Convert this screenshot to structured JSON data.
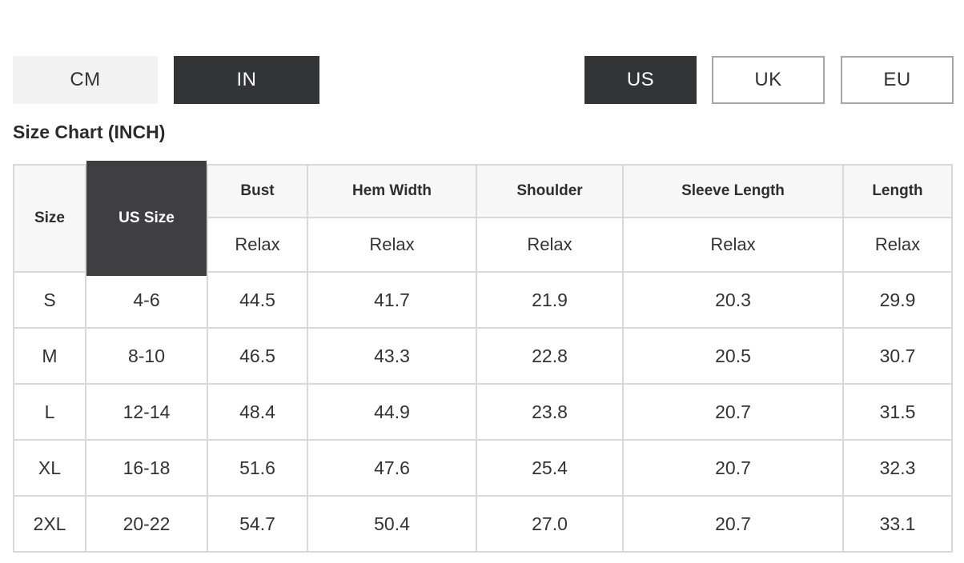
{
  "page": {
    "title": "Size Chart (INCH)"
  },
  "toggles": {
    "units": [
      {
        "id": "cm",
        "label": "CM",
        "selected": false
      },
      {
        "id": "in",
        "label": "IN",
        "selected": true
      }
    ],
    "regions": [
      {
        "id": "us",
        "label": "US",
        "selected": true
      },
      {
        "id": "uk",
        "label": "UK",
        "selected": false
      },
      {
        "id": "eu",
        "label": "EU",
        "selected": false
      }
    ]
  },
  "table": {
    "corner_header": "Size",
    "us_size_header": "US Size",
    "measure_columns": [
      {
        "label": "Bust",
        "fit": "Relax"
      },
      {
        "label": "Hem Width",
        "fit": "Relax"
      },
      {
        "label": "Shoulder",
        "fit": "Relax"
      },
      {
        "label": "Sleeve Length",
        "fit": "Relax"
      },
      {
        "label": "Length",
        "fit": "Relax"
      }
    ],
    "rows": [
      {
        "size": "S",
        "us_size": "4-6",
        "bust": "44.5",
        "hem_width": "41.7",
        "shoulder": "21.9",
        "sleeve_length": "20.3",
        "length": "29.9"
      },
      {
        "size": "M",
        "us_size": "8-10",
        "bust": "46.5",
        "hem_width": "43.3",
        "shoulder": "22.8",
        "sleeve_length": "20.5",
        "length": "30.7"
      },
      {
        "size": "L",
        "us_size": "12-14",
        "bust": "48.4",
        "hem_width": "44.9",
        "shoulder": "23.8",
        "sleeve_length": "20.7",
        "length": "31.5"
      },
      {
        "size": "XL",
        "us_size": "16-18",
        "bust": "51.6",
        "hem_width": "47.6",
        "shoulder": "25.4",
        "sleeve_length": "20.7",
        "length": "32.3"
      },
      {
        "size": "2XL",
        "us_size": "20-22",
        "bust": "54.7",
        "hem_width": "50.4",
        "shoulder": "27.0",
        "sleeve_length": "20.7",
        "length": "33.1"
      }
    ]
  },
  "colors": {
    "selected_dark": "#333436",
    "dark_header_cell": "#3f3f41",
    "unselected_light": "#f2f2f2",
    "outline_gray": "#a6a6a6",
    "table_border": "#d9d9d9",
    "header_bg": "#f7f7f7",
    "text": "#333333"
  }
}
